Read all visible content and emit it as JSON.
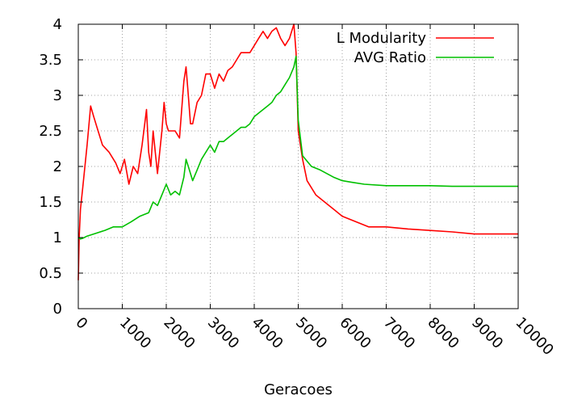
{
  "chart_data": {
    "type": "line",
    "title": "",
    "xlabel": "Geracoes",
    "ylabel": "",
    "xlim": [
      0,
      10000
    ],
    "ylim": [
      0,
      4
    ],
    "x_ticks": [
      "0",
      "1000",
      "2000",
      "3000",
      "4000",
      "5000",
      "6000",
      "7000",
      "8000",
      "9000",
      "10000"
    ],
    "y_ticks": [
      "0",
      "0.5",
      "1",
      "1.5",
      "2",
      "2.5",
      "3",
      "3.5",
      "4"
    ],
    "grid": true,
    "legend_position": "top-right",
    "series": [
      {
        "name": "L Modularity",
        "color": "#ff0000",
        "x": [
          0,
          20,
          50,
          100,
          200,
          280,
          350,
          450,
          550,
          700,
          850,
          950,
          1050,
          1150,
          1250,
          1350,
          1450,
          1550,
          1600,
          1650,
          1700,
          1800,
          1900,
          1950,
          2000,
          2050,
          2100,
          2200,
          2300,
          2400,
          2450,
          2500,
          2550,
          2600,
          2700,
          2800,
          2900,
          3000,
          3100,
          3200,
          3300,
          3400,
          3500,
          3600,
          3700,
          3800,
          3900,
          4000,
          4100,
          4200,
          4300,
          4400,
          4500,
          4600,
          4700,
          4800,
          4900,
          4950,
          5000,
          5100,
          5200,
          5400,
          5600,
          5800,
          6000,
          6200,
          6400,
          6600,
          6800,
          7000,
          7500,
          8000,
          8500,
          9000,
          9500,
          10000
        ],
        "y": [
          0.4,
          1.0,
          1.4,
          1.7,
          2.3,
          2.85,
          2.7,
          2.5,
          2.3,
          2.2,
          2.05,
          1.9,
          2.1,
          1.75,
          2.0,
          1.9,
          2.3,
          2.8,
          2.2,
          2.0,
          2.5,
          1.9,
          2.5,
          2.9,
          2.6,
          2.5,
          2.5,
          2.5,
          2.4,
          3.2,
          3.4,
          3.0,
          2.6,
          2.6,
          2.9,
          3.0,
          3.3,
          3.3,
          3.1,
          3.3,
          3.2,
          3.35,
          3.4,
          3.5,
          3.6,
          3.6,
          3.6,
          3.7,
          3.8,
          3.9,
          3.8,
          3.9,
          3.95,
          3.8,
          3.7,
          3.8,
          4.0,
          3.6,
          2.5,
          2.1,
          1.8,
          1.6,
          1.5,
          1.4,
          1.3,
          1.25,
          1.2,
          1.15,
          1.15,
          1.15,
          1.12,
          1.1,
          1.08,
          1.05,
          1.05,
          1.05
        ]
      },
      {
        "name": "AVG Ratio",
        "color": "#00c000",
        "x": [
          0,
          50,
          100,
          200,
          400,
          600,
          800,
          1000,
          1200,
          1400,
          1600,
          1700,
          1800,
          1900,
          2000,
          2100,
          2200,
          2300,
          2400,
          2450,
          2500,
          2600,
          2700,
          2800,
          2900,
          3000,
          3100,
          3200,
          3300,
          3400,
          3500,
          3600,
          3700,
          3800,
          3900,
          4000,
          4100,
          4200,
          4300,
          4400,
          4500,
          4600,
          4700,
          4800,
          4900,
          4950,
          5000,
          5100,
          5300,
          5500,
          5800,
          6000,
          6200,
          6500,
          7000,
          7500,
          8000,
          8500,
          9000,
          9500,
          10000
        ],
        "y": [
          1.0,
          0.98,
          0.99,
          1.02,
          1.06,
          1.1,
          1.15,
          1.15,
          1.22,
          1.3,
          1.35,
          1.5,
          1.45,
          1.6,
          1.75,
          1.6,
          1.65,
          1.6,
          1.85,
          2.1,
          2.0,
          1.8,
          1.95,
          2.1,
          2.2,
          2.3,
          2.2,
          2.35,
          2.35,
          2.4,
          2.45,
          2.5,
          2.55,
          2.55,
          2.6,
          2.7,
          2.75,
          2.8,
          2.85,
          2.9,
          3.0,
          3.05,
          3.15,
          3.25,
          3.4,
          3.55,
          2.65,
          2.15,
          2.0,
          1.95,
          1.85,
          1.8,
          1.78,
          1.75,
          1.73,
          1.73,
          1.73,
          1.72,
          1.72,
          1.72,
          1.72
        ]
      }
    ]
  }
}
